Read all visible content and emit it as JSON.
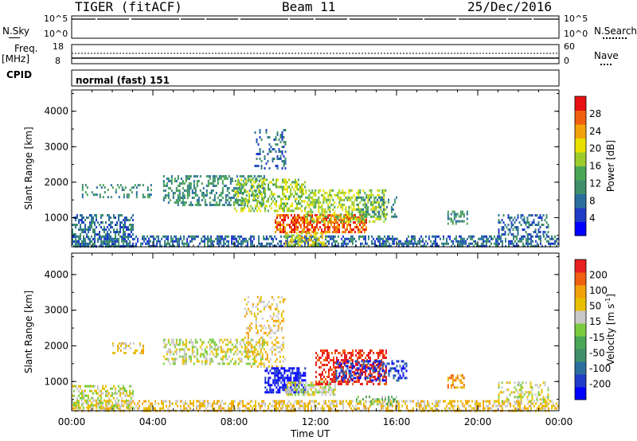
{
  "header": {
    "title": "TIGER (fitACF)",
    "beam": "Beam 11",
    "date": "25/Dec/2016"
  },
  "top_panels": {
    "nsky_label": "N.Sky",
    "nsky_ticks": [
      "10^5",
      "10^0"
    ],
    "nsearch_label": "N.Search",
    "nsearch_ticks": [
      "10^5",
      "10^0"
    ],
    "freq_label_line1": "Freq.",
    "freq_label_line2": "[MHz]",
    "freq_ticks": [
      "18",
      "8"
    ],
    "nave_label": "Nave",
    "nave_ticks": [
      "60",
      "0"
    ],
    "cpid_label": "CPID",
    "cpid_value": "normal (fast) 151"
  },
  "chart_data": [
    {
      "type": "heatmap",
      "name": "power",
      "ylabel": "Slant Range [km]",
      "xlabel": "Time UT",
      "x_ticks": [
        "00:00",
        "04:00",
        "08:00",
        "12:00",
        "16:00",
        "20:00",
        "00:00"
      ],
      "y_ticks": [
        "4000",
        "3000",
        "2000",
        "1000"
      ],
      "ylim": [
        180,
        4600
      ],
      "xlim_hours": [
        0,
        24
      ],
      "colorbar": {
        "label": "Power [dB]",
        "ticks": [
          "28",
          "24",
          "20",
          "16",
          "12",
          "8",
          "4"
        ],
        "colors": [
          "#0000ff",
          "#1e3cc8",
          "#2a6e9e",
          "#3f8f6a",
          "#4aa657",
          "#9ccc2a",
          "#e8e000",
          "#f2a20a",
          "#f06010",
          "#e81010"
        ]
      },
      "echo_regions": [
        {
          "t0": 0.0,
          "t1": 24.0,
          "r0": 180,
          "r1": 500,
          "level": 2,
          "density": 0.55
        },
        {
          "t0": 0.0,
          "t1": 3.0,
          "r0": 200,
          "r1": 1100,
          "level": 2,
          "density": 0.5
        },
        {
          "t0": 0.5,
          "t1": 4.0,
          "r0": 1600,
          "r1": 1950,
          "level": 3,
          "density": 0.25
        },
        {
          "t0": 4.5,
          "t1": 9.5,
          "r0": 1350,
          "r1": 2200,
          "level": 3,
          "density": 0.4
        },
        {
          "t0": 8.0,
          "t1": 11.5,
          "r0": 1200,
          "r1": 2100,
          "level": 5,
          "density": 0.45
        },
        {
          "t0": 9.0,
          "t1": 10.5,
          "r0": 2400,
          "r1": 3500,
          "level": 2,
          "density": 0.25
        },
        {
          "t0": 10.0,
          "t1": 14.5,
          "r0": 600,
          "r1": 1100,
          "level": 8,
          "density": 0.65
        },
        {
          "t0": 10.5,
          "t1": 12.5,
          "r0": 250,
          "r1": 600,
          "level": 6,
          "density": 0.45
        },
        {
          "t0": 11.5,
          "t1": 15.5,
          "r0": 900,
          "r1": 1800,
          "level": 5,
          "density": 0.5
        },
        {
          "t0": 14.0,
          "t1": 16.0,
          "r0": 1000,
          "r1": 1600,
          "level": 3,
          "density": 0.3
        },
        {
          "t0": 18.5,
          "t1": 19.5,
          "r0": 800,
          "r1": 1200,
          "level": 3,
          "density": 0.35
        },
        {
          "t0": 21.0,
          "t1": 23.5,
          "r0": 500,
          "r1": 1100,
          "level": 2,
          "density": 0.4
        }
      ]
    },
    {
      "type": "heatmap",
      "name": "velocity",
      "ylabel": "Slant Range [km]",
      "xlabel": "Time UT",
      "x_ticks": [
        "00:00",
        "04:00",
        "08:00",
        "12:00",
        "16:00",
        "20:00",
        "00:00"
      ],
      "y_ticks": [
        "4000",
        "3000",
        "2000",
        "1000"
      ],
      "ylim": [
        180,
        4600
      ],
      "xlim_hours": [
        0,
        24
      ],
      "colorbar": {
        "label": "Velocity [m s",
        "label_sup": "-1",
        "label_end": "]",
        "ticks": [
          "200",
          "100",
          "50",
          "15",
          "-15",
          "-50",
          "-100",
          "-200"
        ],
        "colors": [
          "#0000ff",
          "#1e3cc8",
          "#2a6e9e",
          "#3f8f6a",
          "#4aa657",
          "#7ccc40",
          "#c8c8c8",
          "#e8c000",
          "#f2a20a",
          "#f06010",
          "#e82020"
        ]
      },
      "echo_regions": [
        {
          "t0": 0.0,
          "t1": 24.0,
          "r0": 180,
          "r1": 480,
          "level": 7,
          "density": 0.5
        },
        {
          "t0": 0.0,
          "t1": 3.0,
          "r0": 250,
          "r1": 900,
          "level": 6,
          "density": 0.5
        },
        {
          "t0": 2.0,
          "t1": 3.5,
          "r0": 1800,
          "r1": 2100,
          "level": 7,
          "density": 0.3
        },
        {
          "t0": 4.5,
          "t1": 9.5,
          "r0": 1500,
          "r1": 2200,
          "level": 6,
          "density": 0.45
        },
        {
          "t0": 8.5,
          "t1": 10.5,
          "r0": 1400,
          "r1": 3400,
          "level": 7,
          "density": 0.25
        },
        {
          "t0": 9.5,
          "t1": 11.5,
          "r0": 700,
          "r1": 1400,
          "level": 0,
          "density": 0.6
        },
        {
          "t0": 10.5,
          "t1": 13.0,
          "r0": 600,
          "r1": 1000,
          "level": 6,
          "density": 0.6
        },
        {
          "t0": 12.0,
          "t1": 15.5,
          "r0": 900,
          "r1": 1900,
          "level": 10,
          "density": 0.5
        },
        {
          "t0": 13.0,
          "t1": 16.5,
          "r0": 1000,
          "r1": 1600,
          "level": 1,
          "density": 0.35
        },
        {
          "t0": 14.0,
          "t1": 16.0,
          "r0": 350,
          "r1": 600,
          "level": 5,
          "density": 0.35
        },
        {
          "t0": 18.5,
          "t1": 19.3,
          "r0": 800,
          "r1": 1200,
          "level": 8,
          "density": 0.4
        },
        {
          "t0": 21.0,
          "t1": 23.5,
          "r0": 400,
          "r1": 1000,
          "level": 6,
          "density": 0.35
        }
      ]
    }
  ]
}
